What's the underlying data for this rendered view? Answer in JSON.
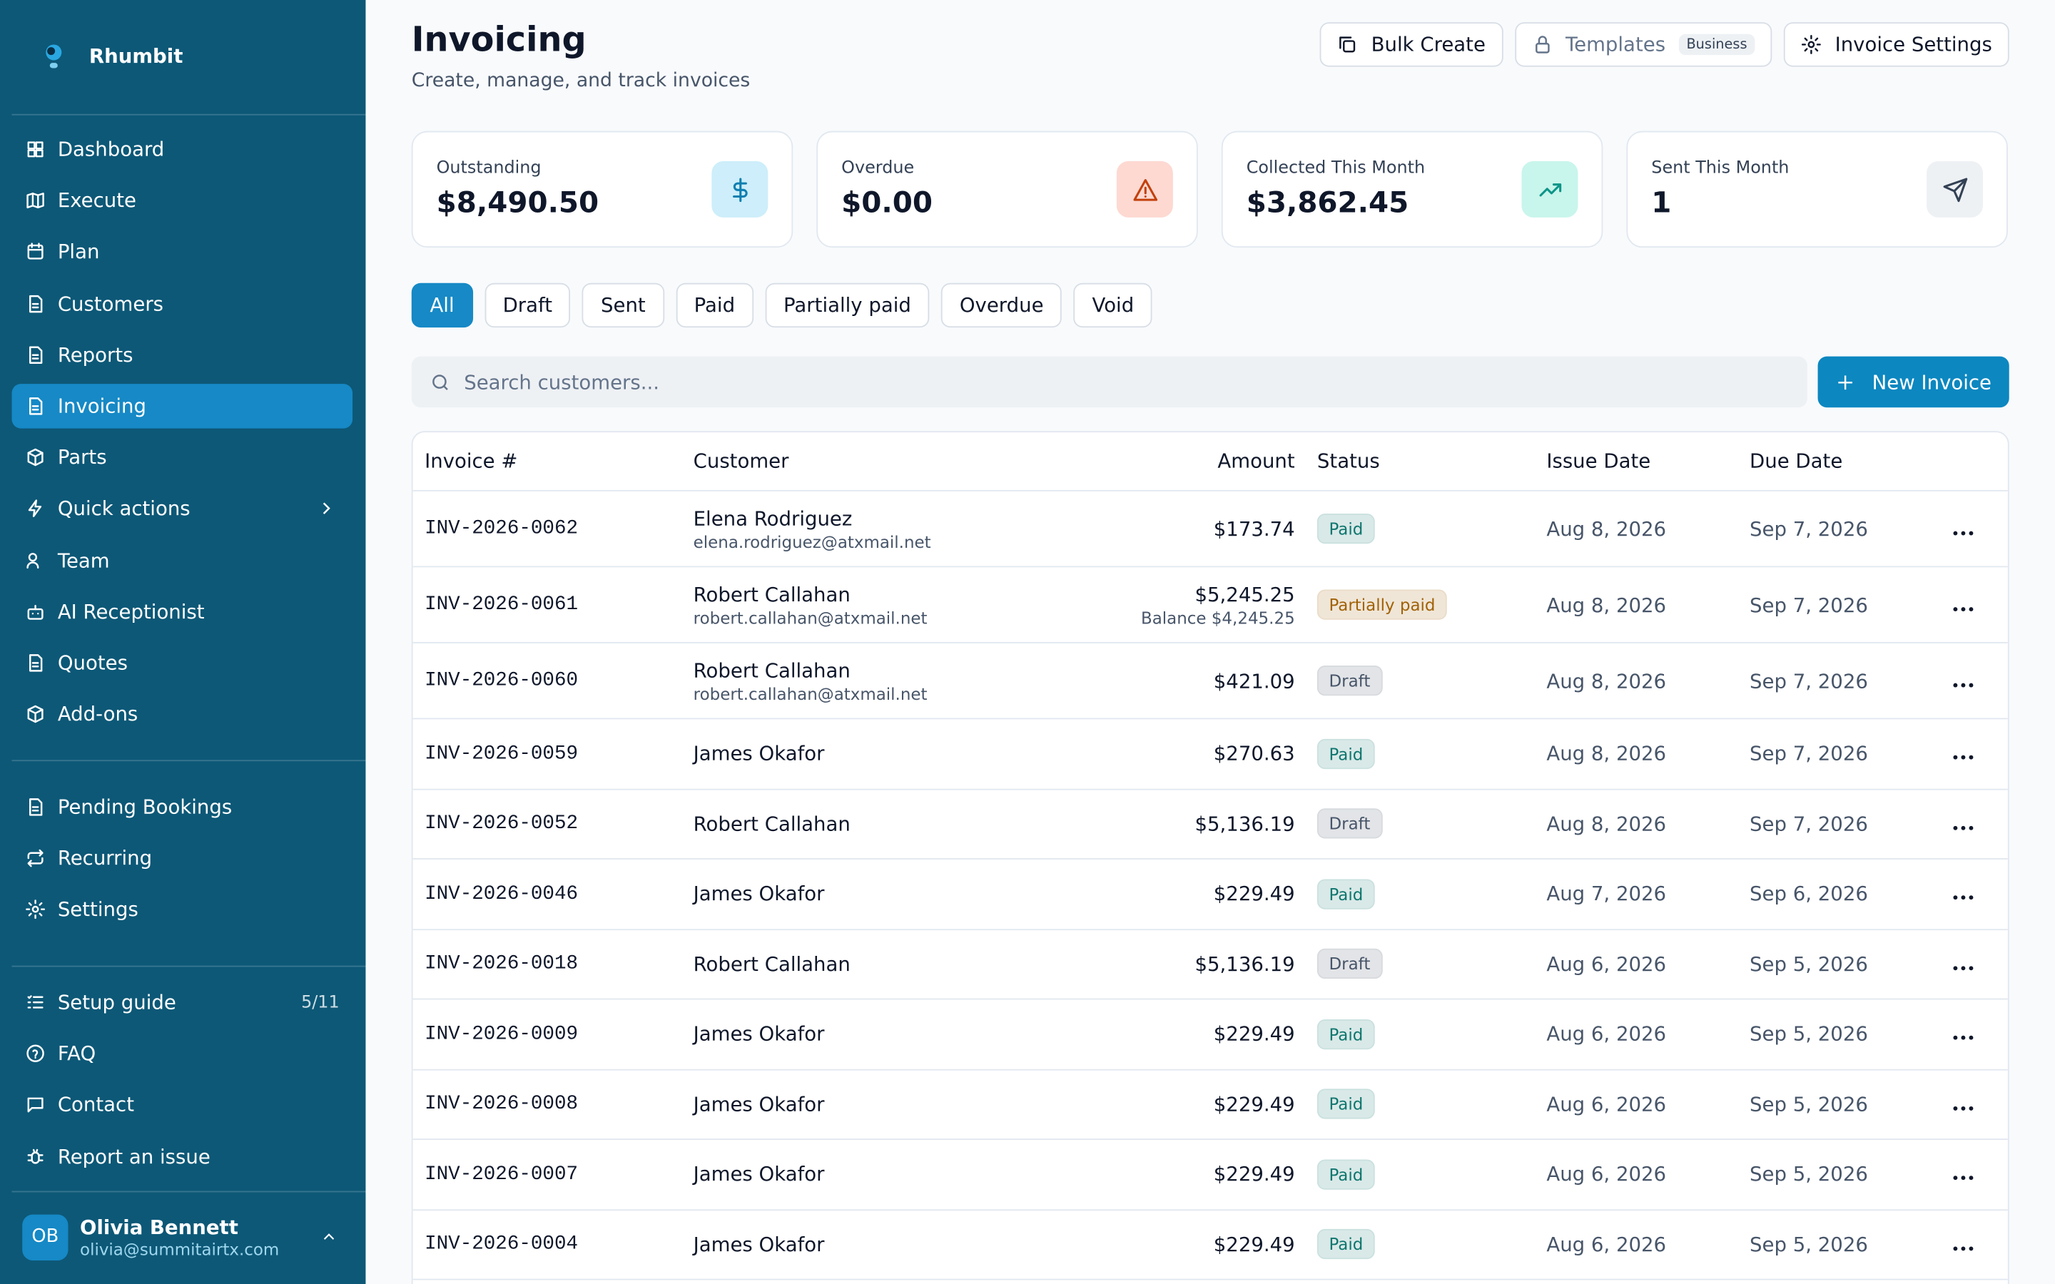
{
  "sidebar": {
    "brand": "Rhumbit",
    "nav": [
      {
        "label": "Dashboard"
      },
      {
        "label": "Execute"
      },
      {
        "label": "Plan"
      },
      {
        "label": "Customers"
      },
      {
        "label": "Reports"
      },
      {
        "label": "Invoicing",
        "active": true
      },
      {
        "label": "Parts"
      },
      {
        "label": "Quick actions",
        "expandable": true
      },
      {
        "label": "Team"
      },
      {
        "label": "AI Receptionist"
      },
      {
        "label": "Quotes"
      },
      {
        "label": "Add-ons"
      }
    ],
    "nav_secondary": [
      {
        "label": "Pending Bookings"
      },
      {
        "label": "Recurring"
      },
      {
        "label": "Settings"
      }
    ],
    "footer_nav": [
      {
        "label": "Setup guide",
        "badge": "5/11"
      },
      {
        "label": "FAQ"
      },
      {
        "label": "Contact"
      },
      {
        "label": "Report an issue"
      }
    ],
    "user": {
      "initials": "OB",
      "name": "Olivia Bennett",
      "email": "olivia@summitairtx.com"
    }
  },
  "header": {
    "title": "Invoicing",
    "subtitle": "Create, manage, and track invoices",
    "actions": [
      {
        "label": "Bulk Create"
      },
      {
        "label": "Templates",
        "badge": "Business",
        "disabled": true
      },
      {
        "label": "Invoice Settings"
      }
    ]
  },
  "stats": [
    {
      "label": "Outstanding",
      "value": "$8,490.50",
      "color": "#0e7fb0",
      "bg": "#cdeefa"
    },
    {
      "label": "Overdue",
      "value": "$0.00",
      "color": "#c2410c",
      "bg": "#fdd9d2"
    },
    {
      "label": "Collected This Month",
      "value": "$3,862.45",
      "color": "#0d9488",
      "bg": "#c8f5ec"
    },
    {
      "label": "Sent This Month",
      "value": "1",
      "color": "#334155",
      "bg": "#eef1f4"
    }
  ],
  "filters": [
    {
      "label": "All",
      "active": true
    },
    {
      "label": "Draft"
    },
    {
      "label": "Sent"
    },
    {
      "label": "Paid"
    },
    {
      "label": "Partially paid"
    },
    {
      "label": "Overdue"
    },
    {
      "label": "Void"
    }
  ],
  "search_placeholder": "Search customers...",
  "new_button": "New Invoice",
  "table": {
    "columns": [
      "Invoice #",
      "Customer",
      "Amount",
      "Status",
      "Issue Date",
      "Due Date"
    ],
    "rows": [
      {
        "number": "INV-2026-0062",
        "customer": "Elena Rodriguez",
        "email": "elena.rodriguez@atxmail.net",
        "amount": "$173.74",
        "status": "Paid",
        "status_color": "#0f766e",
        "issue_date": "Aug 8, 2026",
        "due_date": "Sep 7, 2026"
      },
      {
        "number": "INV-2026-0061",
        "customer": "Robert Callahan",
        "email": "robert.callahan@atxmail.net",
        "amount": "$5,245.25",
        "balance": "Balance $4,245.25",
        "status": "Partially paid",
        "status_color": "#a16207",
        "issue_date": "Aug 8, 2026",
        "due_date": "Sep 7, 2026"
      },
      {
        "number": "INV-2026-0060",
        "customer": "Robert Callahan",
        "email": "robert.callahan@atxmail.net",
        "amount": "$421.09",
        "status": "Draft",
        "status_color": "#475569",
        "issue_date": "Aug 8, 2026",
        "due_date": "Sep 7, 2026"
      },
      {
        "number": "INV-2026-0059",
        "customer": "James Okafor",
        "amount": "$270.63",
        "status": "Paid",
        "status_color": "#0f766e",
        "issue_date": "Aug 8, 2026",
        "due_date": "Sep 7, 2026"
      },
      {
        "number": "INV-2026-0052",
        "customer": "Robert Callahan",
        "amount": "$5,136.19",
        "status": "Draft",
        "status_color": "#475569",
        "issue_date": "Aug 8, 2026",
        "due_date": "Sep 7, 2026"
      },
      {
        "number": "INV-2026-0046",
        "customer": "James Okafor",
        "amount": "$229.49",
        "status": "Paid",
        "status_color": "#0f766e",
        "issue_date": "Aug 7, 2026",
        "due_date": "Sep 6, 2026"
      },
      {
        "number": "INV-2026-0018",
        "customer": "Robert Callahan",
        "amount": "$5,136.19",
        "status": "Draft",
        "status_color": "#475569",
        "issue_date": "Aug 6, 2026",
        "due_date": "Sep 5, 2026"
      },
      {
        "number": "INV-2026-0009",
        "customer": "James Okafor",
        "amount": "$229.49",
        "status": "Paid",
        "status_color": "#0f766e",
        "issue_date": "Aug 6, 2026",
        "due_date": "Sep 5, 2026"
      },
      {
        "number": "INV-2026-0008",
        "customer": "James Okafor",
        "amount": "$229.49",
        "status": "Paid",
        "status_color": "#0f766e",
        "issue_date": "Aug 6, 2026",
        "due_date": "Sep 5, 2026"
      },
      {
        "number": "INV-2026-0007",
        "customer": "James Okafor",
        "amount": "$229.49",
        "status": "Paid",
        "status_color": "#0f766e",
        "issue_date": "Aug 6, 2026",
        "due_date": "Sep 5, 2026"
      },
      {
        "number": "INV-2026-0004",
        "customer": "James Okafor",
        "amount": "$229.49",
        "status": "Paid",
        "status_color": "#0f766e",
        "issue_date": "Aug 6, 2026",
        "due_date": "Sep 5, 2026"
      }
    ]
  }
}
